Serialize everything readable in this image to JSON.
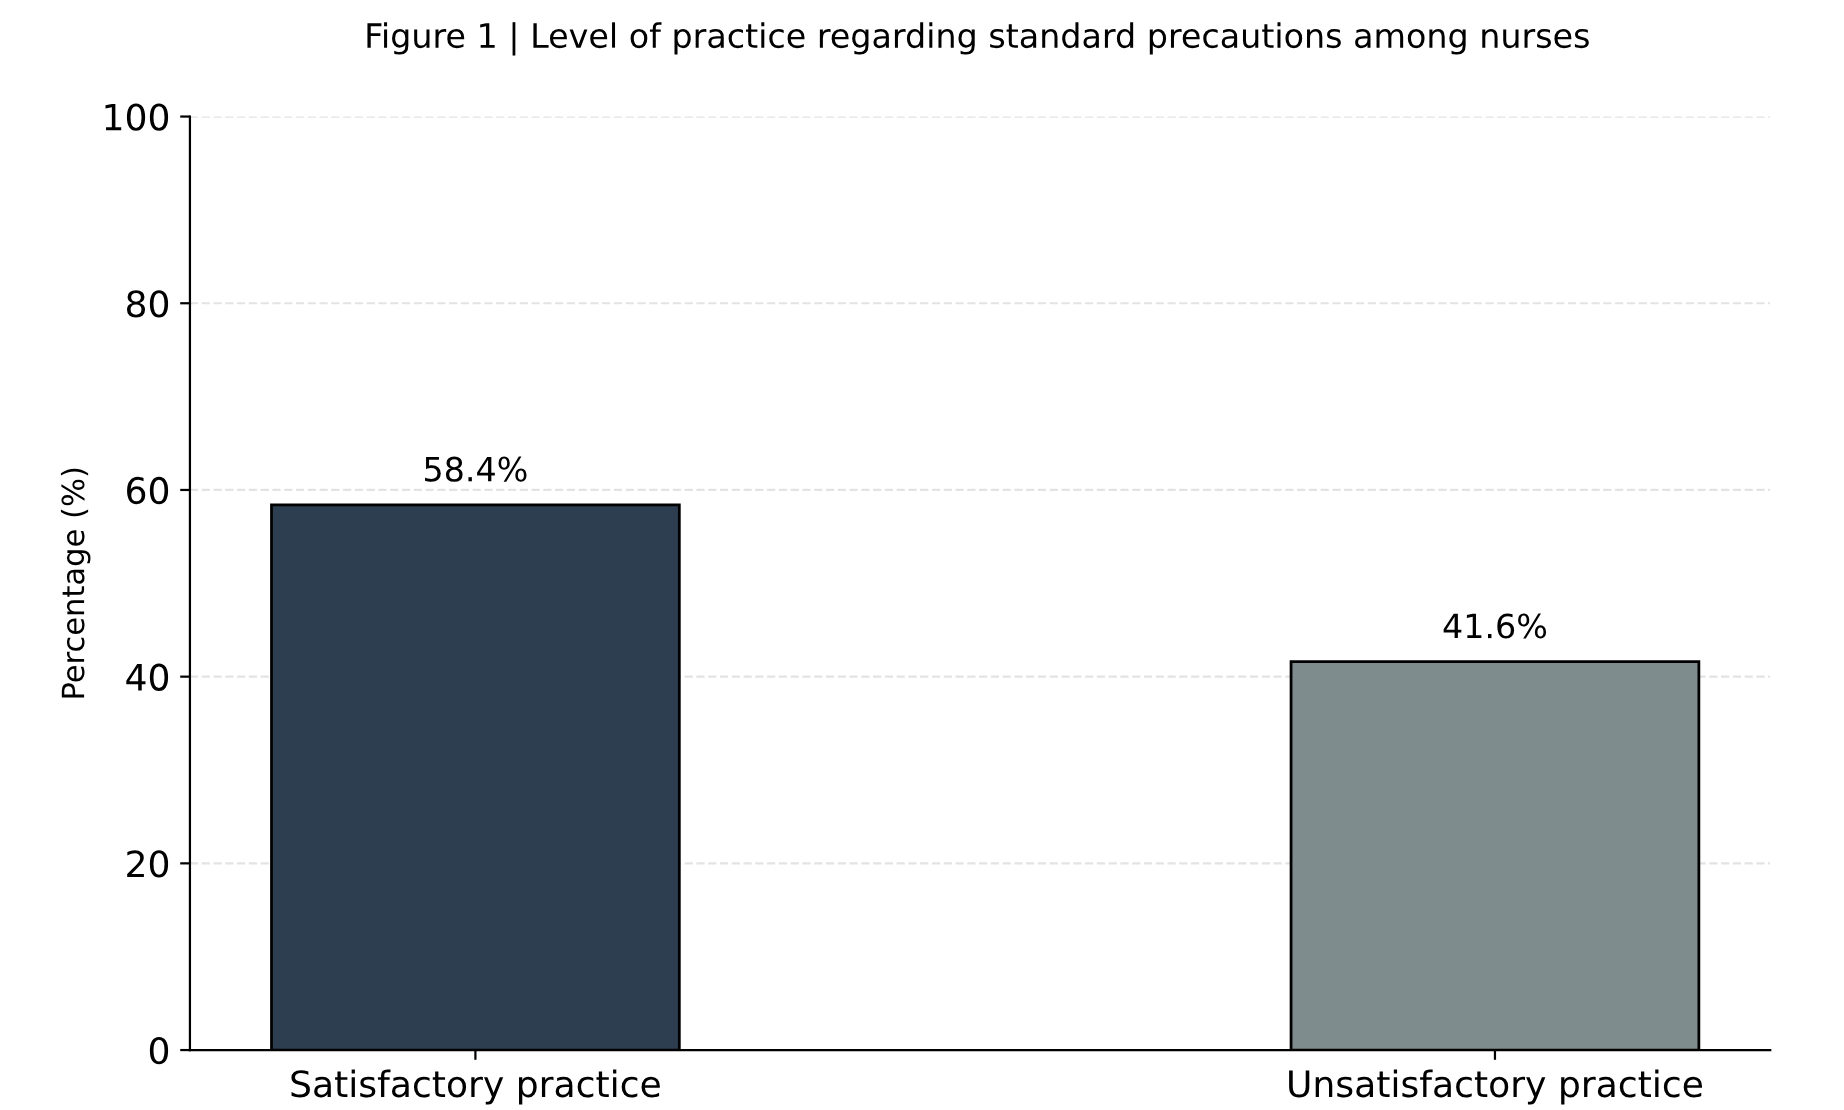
{
  "chart_data": {
    "type": "bar",
    "title": "Figure 1 | Level of practice regarding standard precautions among nurses",
    "ylabel": "Percentage (%)",
    "categories": [
      "Satisfactory practice",
      "Unsatisfactory practice"
    ],
    "values": [
      58.4,
      41.6
    ],
    "colors": [
      "#2c3e50",
      "#7f8c8d"
    ],
    "value_labels": [
      "58.4%",
      "41.6%"
    ],
    "ylim": [
      0,
      100
    ],
    "yticks": [
      0,
      20,
      40,
      60,
      80,
      100
    ],
    "grid": "y",
    "legend": false
  }
}
